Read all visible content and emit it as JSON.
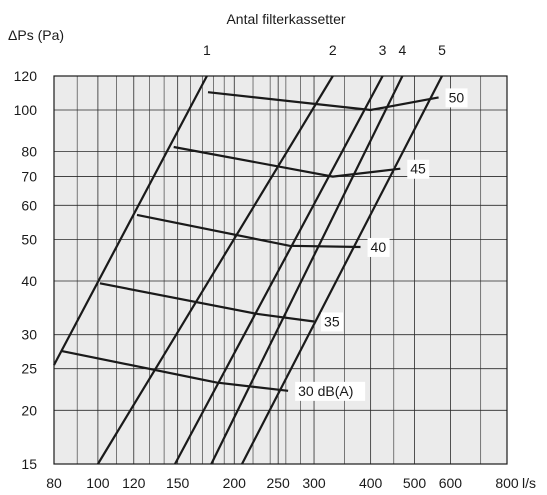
{
  "chart_data": {
    "type": "line",
    "title": "Antal filterkassetter",
    "ylabel": "ΔPs (Pa)",
    "xlabel": "l/s",
    "x_scale": "log",
    "y_scale": "log",
    "xlim": [
      80,
      800
    ],
    "ylim": [
      15,
      120
    ],
    "grid": true,
    "xticks": [
      80,
      100,
      120,
      150,
      200,
      250,
      300,
      400,
      500,
      600,
      800
    ],
    "xtick_labels": [
      "80",
      "100",
      "120",
      "150",
      "200",
      "250",
      "300",
      "400",
      "500",
      "600",
      "800"
    ],
    "yticks": [
      15,
      20,
      25,
      30,
      40,
      50,
      60,
      70,
      80,
      100,
      120
    ],
    "ytick_labels": [
      "15",
      "20",
      "25",
      "30",
      "40",
      "50",
      "60",
      "70",
      "80",
      "100",
      "120"
    ],
    "xminor": [
      90,
      110,
      130,
      140,
      160,
      170,
      180,
      190,
      220,
      240,
      260,
      280,
      350,
      450,
      700
    ],
    "filter_series": [
      {
        "name": "1",
        "points": [
          [
            80,
            25.5
          ],
          [
            174,
            120
          ]
        ]
      },
      {
        "name": "2",
        "points": [
          [
            100,
            15
          ],
          [
            330,
            120
          ]
        ]
      },
      {
        "name": "3",
        "points": [
          [
            148,
            15
          ],
          [
            425,
            120
          ]
        ]
      },
      {
        "name": "4",
        "points": [
          [
            178,
            15
          ],
          [
            470,
            120
          ]
        ]
      },
      {
        "name": "5",
        "points": [
          [
            208,
            15
          ],
          [
            575,
            120
          ]
        ]
      }
    ],
    "noise_series": [
      {
        "name": "30 dB(A)",
        "points": [
          [
            83,
            27.5
          ],
          [
            183,
            23.2
          ],
          [
            263,
            22.2
          ]
        ]
      },
      {
        "name": "35",
        "points": [
          [
            101,
            39.5
          ],
          [
            226,
            33.5
          ],
          [
            300,
            32.2
          ]
        ]
      },
      {
        "name": "40",
        "points": [
          [
            122,
            57
          ],
          [
            265,
            48.3
          ],
          [
            380,
            48
          ]
        ]
      },
      {
        "name": "45",
        "points": [
          [
            147,
            82
          ],
          [
            330,
            70
          ],
          [
            465,
            73
          ]
        ]
      },
      {
        "name": "50",
        "points": [
          [
            175,
            110
          ],
          [
            400,
            100
          ],
          [
            565,
            107
          ]
        ]
      }
    ]
  }
}
